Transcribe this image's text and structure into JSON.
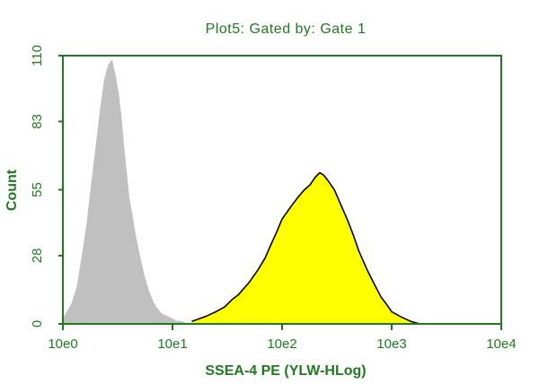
{
  "chart_data": {
    "type": "area",
    "title": "Plot5:  Gated by: Gate 1",
    "xlabel": "SSEA-4 PE (YLW-HLog)",
    "ylabel": "Count",
    "x_scale": "log",
    "xlim": [
      1,
      10000
    ],
    "ylim": [
      0,
      110
    ],
    "x_tick_labels": [
      "10e0",
      "10e1",
      "10e2",
      "10e3",
      "10e4"
    ],
    "x_tick_values": [
      1,
      10,
      100,
      1000,
      10000
    ],
    "y_tick_labels": [
      "0",
      "28",
      "55",
      "83",
      "110"
    ],
    "y_tick_values": [
      0,
      28,
      55,
      83,
      110
    ],
    "grid": false,
    "colors": {
      "axis": "#1f7a1f",
      "text": "#1f7a1f",
      "control_fill": "#c0c0c0",
      "sample_fill": "#ffff00",
      "sample_outline": "#000000"
    },
    "series": [
      {
        "style": "gray-filled",
        "x": [
          1.0,
          1.1,
          1.2,
          1.35,
          1.5,
          1.65,
          1.8,
          2.0,
          2.2,
          2.4,
          2.6,
          2.8,
          3.0,
          3.2,
          3.4,
          3.6,
          3.8,
          4.0,
          4.3,
          4.6,
          5.0,
          5.5,
          6.0,
          6.5,
          7.0,
          8.0,
          9.0,
          10.0,
          11.0,
          12.0,
          13.5
        ],
        "y": [
          2,
          5,
          8,
          15,
          28,
          40,
          55,
          72,
          88,
          100,
          106,
          108,
          102,
          95,
          85,
          72,
          62,
          52,
          44,
          36,
          28,
          20,
          14,
          10,
          7,
          4,
          3,
          2,
          1,
          1,
          0
        ]
      },
      {
        "style": "yellow-filled-black-outline",
        "x": [
          15,
          20,
          25,
          30,
          35,
          40,
          50,
          60,
          70,
          80,
          90,
          100,
          120,
          140,
          160,
          180,
          200,
          220,
          240,
          260,
          300,
          350,
          400,
          450,
          500,
          600,
          700,
          800,
          900,
          1000,
          1200,
          1500,
          1800,
          2000
        ],
        "y": [
          1,
          3,
          5,
          7,
          10,
          12,
          17,
          22,
          27,
          33,
          38,
          43,
          48,
          52,
          55,
          57,
          60,
          62,
          61,
          59,
          55,
          48,
          42,
          36,
          30,
          22,
          16,
          11,
          8,
          5,
          3,
          1,
          0,
          0
        ]
      }
    ]
  }
}
